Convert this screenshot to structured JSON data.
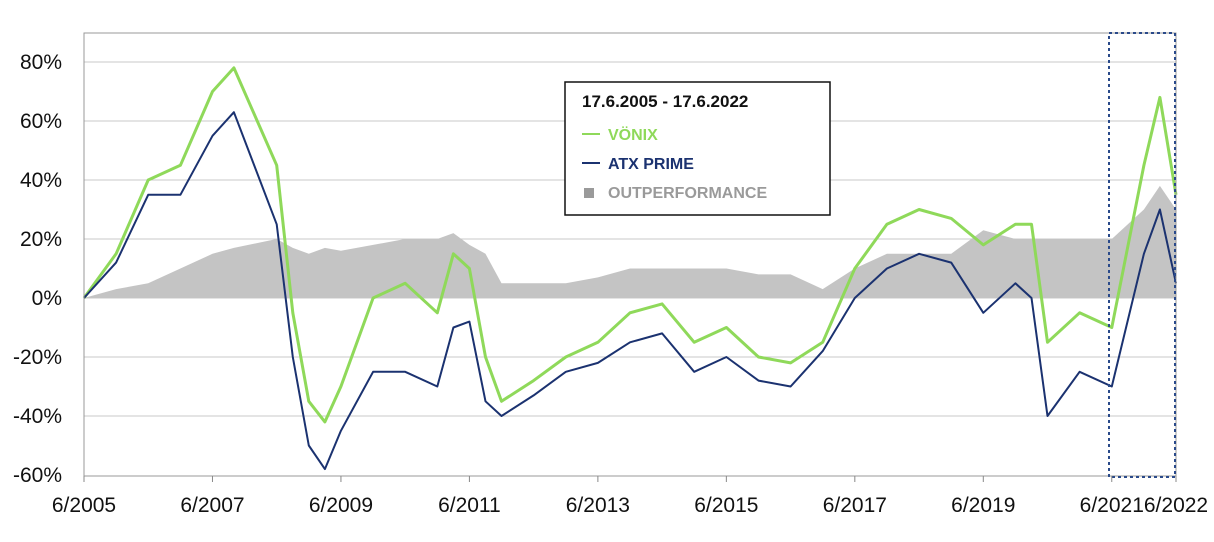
{
  "chart_data": {
    "type": "line",
    "x": [
      "6/2005",
      "12/2005",
      "6/2006",
      "12/2006",
      "6/2007",
      "10/2007",
      "6/2008",
      "9/2008",
      "12/2008",
      "3/2009",
      "6/2009",
      "12/2009",
      "6/2010",
      "12/2010",
      "3/2011",
      "6/2011",
      "9/2011",
      "12/2011",
      "6/2012",
      "12/2012",
      "6/2013",
      "12/2013",
      "6/2014",
      "12/2014",
      "6/2015",
      "12/2015",
      "6/2016",
      "12/2016",
      "6/2017",
      "12/2017",
      "6/2018",
      "12/2018",
      "6/2019",
      "12/2019",
      "3/2020",
      "6/2020",
      "12/2020",
      "6/2021",
      "12/2021",
      "3/2022",
      "6/2022"
    ],
    "series": [
      {
        "name": "VÖNIX",
        "color": "#8fd95a",
        "values": [
          0,
          15,
          40,
          45,
          70,
          78,
          45,
          -5,
          -35,
          -42,
          -30,
          0,
          5,
          -5,
          15,
          10,
          -20,
          -35,
          -28,
          -20,
          -15,
          -5,
          -2,
          -15,
          -10,
          -20,
          -22,
          -15,
          10,
          25,
          30,
          27,
          18,
          25,
          25,
          -15,
          -5,
          -10,
          45,
          68,
          35
        ]
      },
      {
        "name": "ATX PRIME",
        "color": "#1b3270",
        "values": [
          0,
          12,
          35,
          35,
          55,
          63,
          25,
          -20,
          -50,
          -58,
          -45,
          -25,
          -25,
          -30,
          -10,
          -8,
          -35,
          -40,
          -33,
          -25,
          -22,
          -15,
          -12,
          -25,
          -20,
          -28,
          -30,
          -18,
          0,
          10,
          15,
          12,
          -5,
          5,
          0,
          -40,
          -25,
          -30,
          15,
          30,
          5
        ]
      },
      {
        "name": "OUTPERFORMANCE",
        "color": "#c4c4c4",
        "values": [
          0,
          3,
          5,
          10,
          15,
          17,
          20,
          17,
          15,
          17,
          16,
          18,
          20,
          20,
          22,
          18,
          15,
          5,
          5,
          5,
          7,
          10,
          10,
          10,
          10,
          8,
          8,
          3,
          10,
          15,
          15,
          15,
          23,
          20,
          20,
          20,
          20,
          20,
          30,
          38,
          30
        ]
      }
    ],
    "ylim": [
      -60,
      90
    ],
    "yticks": [
      "80%",
      "60%",
      "40%",
      "20%",
      "0%",
      "-20%",
      "-40%",
      "-60%"
    ],
    "xticks": [
      "6/2005",
      "6/2007",
      "6/2009",
      "6/2011",
      "6/2013",
      "6/2015",
      "6/2017",
      "6/2019",
      "6/2021",
      "6/2022"
    ],
    "legend": {
      "title": "17.6.2005 - 17.6.2022",
      "entries": [
        "VÖNIX",
        "ATX PRIME",
        "OUTPERFORMANCE"
      ]
    },
    "grid": true,
    "highlight": {
      "from": "6/2021",
      "to": "6/2022",
      "style": "dotted"
    }
  }
}
